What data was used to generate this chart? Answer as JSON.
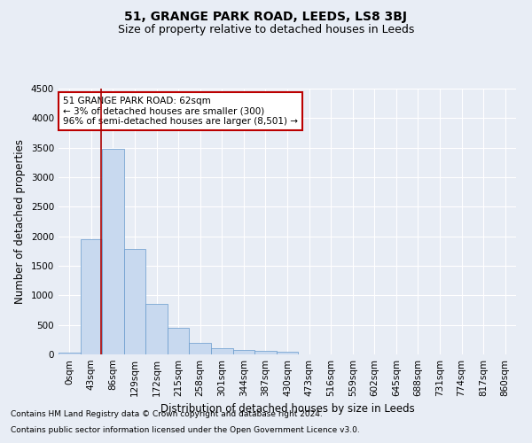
{
  "title": "51, GRANGE PARK ROAD, LEEDS, LS8 3BJ",
  "subtitle": "Size of property relative to detached houses in Leeds",
  "xlabel": "Distribution of detached houses by size in Leeds",
  "ylabel": "Number of detached properties",
  "bar_color": "#c8d9ef",
  "bar_edge_color": "#6699cc",
  "categories": [
    "0sqm",
    "43sqm",
    "86sqm",
    "129sqm",
    "172sqm",
    "215sqm",
    "258sqm",
    "301sqm",
    "344sqm",
    "387sqm",
    "430sqm",
    "473sqm",
    "516sqm",
    "559sqm",
    "602sqm",
    "645sqm",
    "688sqm",
    "731sqm",
    "774sqm",
    "817sqm",
    "860sqm"
  ],
  "values": [
    30,
    1950,
    3480,
    1790,
    850,
    450,
    200,
    100,
    75,
    60,
    50,
    0,
    0,
    0,
    0,
    0,
    0,
    0,
    0,
    0,
    0
  ],
  "ylim": [
    0,
    4500
  ],
  "yticks": [
    0,
    500,
    1000,
    1500,
    2000,
    2500,
    3000,
    3500,
    4000,
    4500
  ],
  "annotation_text": "51 GRANGE PARK ROAD: 62sqm\n← 3% of detached houses are smaller (300)\n96% of semi-detached houses are larger (8,501) →",
  "annotation_box_facecolor": "#ffffff",
  "annotation_box_edgecolor": "#bb0000",
  "footnote1": "Contains HM Land Registry data © Crown copyright and database right 2024.",
  "footnote2": "Contains public sector information licensed under the Open Government Licence v3.0.",
  "background_color": "#e8edf5",
  "grid_color": "#ffffff",
  "red_line_color": "#aa0000",
  "title_fontsize": 10,
  "subtitle_fontsize": 9,
  "axis_label_fontsize": 8.5,
  "tick_fontsize": 7.5,
  "annotation_fontsize": 7.5,
  "footnote_fontsize": 6.5
}
